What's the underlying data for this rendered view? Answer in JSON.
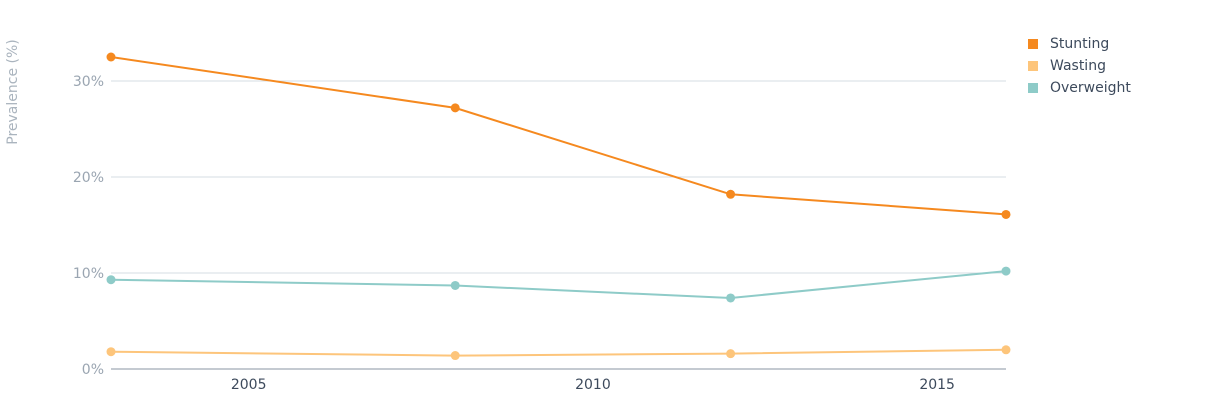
{
  "chart_data": {
    "type": "line",
    "ylabel": "Prevalence (%)",
    "xlabel": "",
    "x": [
      2003,
      2008,
      2012,
      2016
    ],
    "xlim": [
      2003,
      2016
    ],
    "ylim": [
      0,
      35
    ],
    "x_ticks": [
      2005,
      2010,
      2015
    ],
    "y_ticks": [
      0,
      10,
      20,
      30
    ],
    "y_tick_labels": [
      "0%",
      "10%",
      "20%",
      "30%"
    ],
    "grid": true,
    "legend_position": "top-right",
    "series": [
      {
        "name": "Stunting",
        "color": "#f5891f",
        "values": [
          32.5,
          27.2,
          18.2,
          16.1
        ]
      },
      {
        "name": "Wasting",
        "color": "#fdc57b",
        "values": [
          1.8,
          1.4,
          1.6,
          2.0
        ]
      },
      {
        "name": "Overweight",
        "color": "#8ecbc8",
        "values": [
          9.3,
          8.7,
          7.4,
          10.2
        ]
      }
    ]
  }
}
